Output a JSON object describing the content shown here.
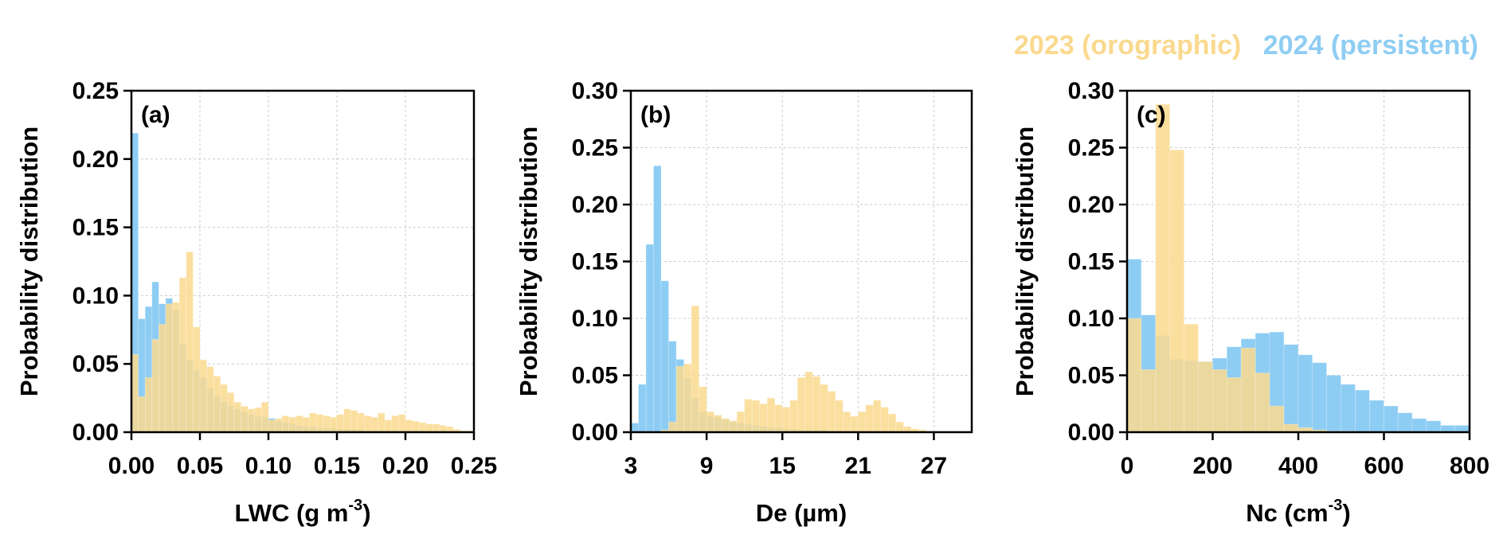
{
  "colors": {
    "orographic": "#FAD98E",
    "persistent": "#8ECDF3",
    "grid": "#cccccc",
    "axis": "#000000"
  },
  "legend": {
    "orographic": "2023 (orographic)",
    "persistent": "2024 (persistent)"
  },
  "chart_data": [
    {
      "type": "bar",
      "panel_label": "(a)",
      "xlabel_main": "LWC (g m",
      "xlabel_sup": "-3",
      "xlabel_end": ")",
      "ylabel": "Probability distribution",
      "xlim": [
        0,
        0.25
      ],
      "ylim": [
        0,
        0.25
      ],
      "xticks": [
        0,
        0.05,
        0.1,
        0.15,
        0.2,
        0.25
      ],
      "xtick_labels": [
        "0.00",
        "0.05",
        "0.10",
        "0.15",
        "0.20",
        "0.25"
      ],
      "yticks": [
        0,
        0.05,
        0.1,
        0.15,
        0.2,
        0.25
      ],
      "ytick_labels": [
        "0.00",
        "0.05",
        "0.10",
        "0.15",
        "0.20",
        "0.25"
      ],
      "bin_start": 0,
      "bin_width": 0.005,
      "series": [
        {
          "name": "2024 (persistent)",
          "color_key": "persistent",
          "values": [
            0.219,
            0.083,
            0.092,
            0.11,
            0.094,
            0.098,
            0.09,
            0.065,
            0.053,
            0.045,
            0.04,
            0.032,
            0.026,
            0.022,
            0.019,
            0.017,
            0.015,
            0.013,
            0.012,
            0.011,
            0.01,
            0.008,
            0.007,
            0.006,
            0.005,
            0.004,
            0.004,
            0.003,
            0.003,
            0.003,
            0.002,
            0.002,
            0.002,
            0.002,
            0.001,
            0.001,
            0.001,
            0.001,
            0.001,
            0.001,
            0.001,
            0.001,
            0.001,
            0.001,
            0.001,
            0.001,
            0.0,
            0.0,
            0.0,
            0.0
          ]
        },
        {
          "name": "2023 (orographic)",
          "color_key": "orographic",
          "values": [
            0.057,
            0.026,
            0.04,
            0.068,
            0.079,
            0.094,
            0.095,
            0.113,
            0.132,
            0.077,
            0.053,
            0.048,
            0.041,
            0.035,
            0.029,
            0.022,
            0.019,
            0.017,
            0.018,
            0.022,
            0.009,
            0.01,
            0.012,
            0.011,
            0.012,
            0.011,
            0.014,
            0.013,
            0.012,
            0.011,
            0.013,
            0.017,
            0.016,
            0.014,
            0.012,
            0.011,
            0.014,
            0.009,
            0.012,
            0.013,
            0.009,
            0.008,
            0.007,
            0.006,
            0.006,
            0.005,
            0.004,
            0.002,
            0.001,
            0.001
          ]
        }
      ]
    },
    {
      "type": "bar",
      "panel_label": "(b)",
      "xlabel_main": "De (µm)",
      "xlabel_sup": "",
      "xlabel_end": "",
      "ylabel": "Probability distribution",
      "xlim": [
        3,
        30
      ],
      "ylim": [
        0,
        0.3
      ],
      "xticks": [
        3,
        9,
        15,
        21,
        27
      ],
      "xtick_labels": [
        "3",
        "9",
        "15",
        "21",
        "27"
      ],
      "yticks": [
        0,
        0.05,
        0.1,
        0.15,
        0.2,
        0.25,
        0.3
      ],
      "ytick_labels": [
        "0.00",
        "0.05",
        "0.10",
        "0.15",
        "0.20",
        "0.25",
        "0.30"
      ],
      "bin_start": 3,
      "bin_width": 0.6,
      "series": [
        {
          "name": "2024 (persistent)",
          "color_key": "persistent",
          "values": [
            0.008,
            0.042,
            0.165,
            0.234,
            0.133,
            0.08,
            0.064,
            0.047,
            0.03,
            0.018,
            0.014,
            0.013,
            0.011,
            0.009,
            0.008,
            0.007,
            0.006,
            0.005,
            0.004,
            0.004,
            0.003,
            0.003,
            0.002,
            0.002,
            0.002,
            0.002,
            0.001,
            0.001,
            0.001,
            0.001,
            0.001,
            0.001,
            0.001,
            0.001,
            0.001,
            0.001,
            0.001,
            0.001,
            0.0,
            0.0,
            0.0,
            0.0,
            0.0,
            0.0,
            0.0
          ]
        },
        {
          "name": "2023 (orographic)",
          "color_key": "orographic",
          "values": [
            0.0,
            0.0,
            0.0,
            0.0,
            0.002,
            0.009,
            0.058,
            0.06,
            0.111,
            0.04,
            0.018,
            0.015,
            0.012,
            0.01,
            0.018,
            0.029,
            0.028,
            0.025,
            0.03,
            0.024,
            0.022,
            0.028,
            0.048,
            0.053,
            0.049,
            0.042,
            0.036,
            0.028,
            0.018,
            0.014,
            0.018,
            0.024,
            0.028,
            0.022,
            0.016,
            0.009,
            0.005,
            0.003,
            0.002,
            0.001,
            0.001,
            0.001,
            0.001,
            0.001,
            0.001
          ]
        }
      ]
    },
    {
      "type": "bar",
      "panel_label": "(c)",
      "xlabel_main": "Nc (cm",
      "xlabel_sup": "-3",
      "xlabel_end": ")",
      "ylabel": "Probability distribution",
      "xlim": [
        0,
        800
      ],
      "ylim": [
        0,
        0.3
      ],
      "xticks": [
        0,
        200,
        400,
        600,
        800
      ],
      "xtick_labels": [
        "0",
        "200",
        "400",
        "600",
        "800"
      ],
      "yticks": [
        0,
        0.05,
        0.1,
        0.15,
        0.2,
        0.25,
        0.3
      ],
      "ytick_labels": [
        "0.00",
        "0.05",
        "0.10",
        "0.15",
        "0.20",
        "0.25",
        "0.30"
      ],
      "bin_start": 0,
      "bin_width": 33.3,
      "series": [
        {
          "name": "2024 (persistent)",
          "color_key": "persistent",
          "values": [
            0.152,
            0.103,
            0.085,
            0.064,
            0.063,
            0.062,
            0.065,
            0.075,
            0.082,
            0.087,
            0.088,
            0.077,
            0.068,
            0.061,
            0.05,
            0.042,
            0.037,
            0.028,
            0.023,
            0.017,
            0.012,
            0.01,
            0.006,
            0.006,
            0.003
          ]
        },
        {
          "name": "2023 (orographic)",
          "color_key": "orographic",
          "values": [
            0.1,
            0.055,
            0.288,
            0.248,
            0.095,
            0.062,
            0.055,
            0.048,
            0.074,
            0.052,
            0.023,
            0.007,
            0.004,
            0.002,
            0.001,
            0.001,
            0.0,
            0.0,
            0.0,
            0.0,
            0.0,
            0.0,
            0.0,
            0.0,
            0.0
          ]
        }
      ]
    }
  ]
}
